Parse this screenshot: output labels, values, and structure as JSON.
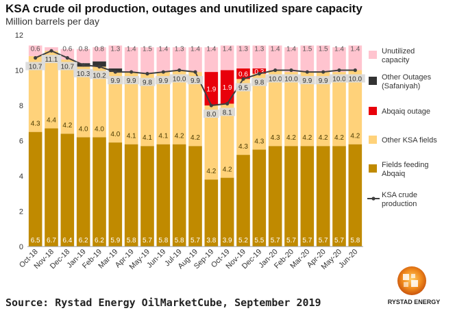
{
  "page": {
    "title": "KSA crude oil production, outages and unutilized spare capacity",
    "subtitle": "Million barrels per day",
    "source": "Source: Rystad Energy OilMarketCube, September 2019",
    "logo_text": "RYSTAD ENERGY"
  },
  "colors": {
    "fields_abqaiq": "#c08a00",
    "other_ksa": "#ffd27a",
    "abqaiq_outage": "#e8000b",
    "other_outages": "#333333",
    "spare": "#ffc4cf",
    "production_line": "#3f3f3f",
    "label_bg": "#d9d9d9"
  },
  "chart_data": {
    "type": "bar",
    "stacked": true,
    "title": "KSA crude oil production, outages and unutilized spare capacity",
    "ylabel": "Million barrels per day",
    "ylim": [
      0,
      12
    ],
    "yticks": [
      0,
      2,
      4,
      6,
      8,
      10,
      12
    ],
    "grid": false,
    "legend_position": "right",
    "categories": [
      "Oct-18",
      "Nov-18",
      "Dec-18",
      "Jan-19",
      "Feb-19",
      "Mar-19",
      "Apr-19",
      "May-19",
      "Jun-19",
      "Jul-19",
      "Aug-19",
      "Sep-19",
      "Oct-19",
      "Nov-19",
      "Dec-19",
      "Jan-20",
      "Feb-20",
      "Mar-20",
      "Apr-20",
      "May-20",
      "Jun-20"
    ],
    "series": [
      {
        "name": "Fields feeding Abqaiq",
        "key": "fields_abqaiq",
        "values": [
          6.5,
          6.7,
          6.4,
          6.2,
          6.2,
          5.9,
          5.8,
          5.7,
          5.8,
          5.8,
          5.7,
          3.8,
          3.9,
          5.2,
          5.5,
          5.7,
          5.7,
          5.7,
          5.7,
          5.7,
          5.8
        ],
        "labels": [
          "6.5",
          "6.7",
          "6.4",
          "6.2",
          "6.2",
          "5.9",
          "5.8",
          "5.7",
          "5.8",
          "5.8",
          "5.7",
          "3.8",
          "3.9",
          "5.2",
          "5.5",
          "5.7",
          "5.7",
          "5.7",
          "5.7",
          "5.7",
          "5.8"
        ]
      },
      {
        "name": "Other KSA fields",
        "key": "other_ksa",
        "values": [
          4.3,
          4.4,
          4.2,
          4.0,
          4.0,
          4.0,
          4.1,
          4.1,
          4.1,
          4.2,
          4.2,
          4.2,
          4.2,
          4.3,
          4.3,
          4.3,
          4.2,
          4.2,
          4.2,
          4.2,
          4.2
        ],
        "labels": [
          "4.3",
          "4.4",
          "4.2",
          "4.0",
          "4.0",
          "4.0",
          "4.1",
          "4.1",
          "4.1",
          "4.2",
          "4.2",
          "4.2",
          "4.2",
          "4.3",
          "4.3",
          "4.3",
          "4.2",
          "4.2",
          "4.2",
          "4.2",
          "4.2"
        ]
      },
      {
        "name": "Abqaiq outage",
        "key": "abqaiq_outage",
        "values": [
          0,
          0,
          0,
          0,
          0,
          0,
          0,
          0,
          0,
          0,
          0,
          1.9,
          1.9,
          0.6,
          0.3,
          0,
          0,
          0,
          0,
          0,
          0
        ],
        "labels": [
          "",
          "",
          "",
          "",
          "",
          "",
          "",
          "",
          "",
          "",
          "",
          "1.9",
          "1.9",
          "0.6",
          "0.3",
          "",
          "",
          "",
          "",
          "",
          ""
        ]
      },
      {
        "name": "Other Outages (Safaniyah)",
        "key": "other_outages",
        "values": [
          0,
          0,
          0,
          0.2,
          0.3,
          0.2,
          0,
          0,
          0,
          0,
          0,
          0,
          0,
          0,
          0,
          0,
          0,
          0,
          0,
          0,
          0
        ],
        "labels": [
          "",
          "",
          "",
          "",
          "",
          "",
          "",
          "",
          "",
          "",
          "",
          "",
          "",
          "",
          "",
          "",
          "",
          "",
          "",
          "",
          ""
        ]
      },
      {
        "name": "Unutilized capacity",
        "key": "spare",
        "values": [
          0.6,
          0.2,
          0.6,
          0.8,
          0.8,
          1.3,
          1.4,
          1.5,
          1.4,
          1.3,
          1.4,
          1.4,
          1.4,
          1.3,
          1.3,
          1.4,
          1.4,
          1.5,
          1.5,
          1.4,
          1.4
        ],
        "labels": [
          "0.6",
          "",
          "0.6",
          "0.8",
          "0.8",
          "1.3",
          "1.4",
          "1.5",
          "1.4",
          "1.3",
          "1.4",
          "1.4",
          "1.4",
          "1.3",
          "1.3",
          "1.4",
          "1.4",
          "1.5",
          "1.5",
          "1.4",
          "1.4"
        ]
      }
    ],
    "line": {
      "name": "KSA crude production",
      "values": [
        10.7,
        11.1,
        10.7,
        10.3,
        10.2,
        9.9,
        9.9,
        9.8,
        9.9,
        10.0,
        9.9,
        8.0,
        8.1,
        9.5,
        9.8,
        10.0,
        10.0,
        9.9,
        9.9,
        10.0,
        10.0
      ],
      "labels": [
        "10.7",
        "11.1",
        "10.7",
        "10.3",
        "10.2",
        "9.9",
        "9.9",
        "9.8",
        "9.9",
        "10.0",
        "9.9",
        "8.0",
        "8.1",
        "9.5",
        "9.8",
        "10.0",
        "10.0",
        "9.9",
        "9.9",
        "10.0",
        "10.0"
      ]
    },
    "legend": [
      {
        "label": "Unutilized\ncapacity",
        "key": "spare",
        "kind": "box"
      },
      {
        "label": "Other Outages\n(Safaniyah)",
        "key": "other_outages",
        "kind": "box"
      },
      {
        "label": "Abqaiq outage",
        "key": "abqaiq_outage",
        "kind": "box"
      },
      {
        "label": "Other KSA fields",
        "key": "other_ksa",
        "kind": "box"
      },
      {
        "label": "Fields feeding\nAbqaiq",
        "key": "fields_abqaiq",
        "kind": "box"
      },
      {
        "label": "KSA crude\nproduction",
        "key": "production_line",
        "kind": "line"
      }
    ]
  }
}
